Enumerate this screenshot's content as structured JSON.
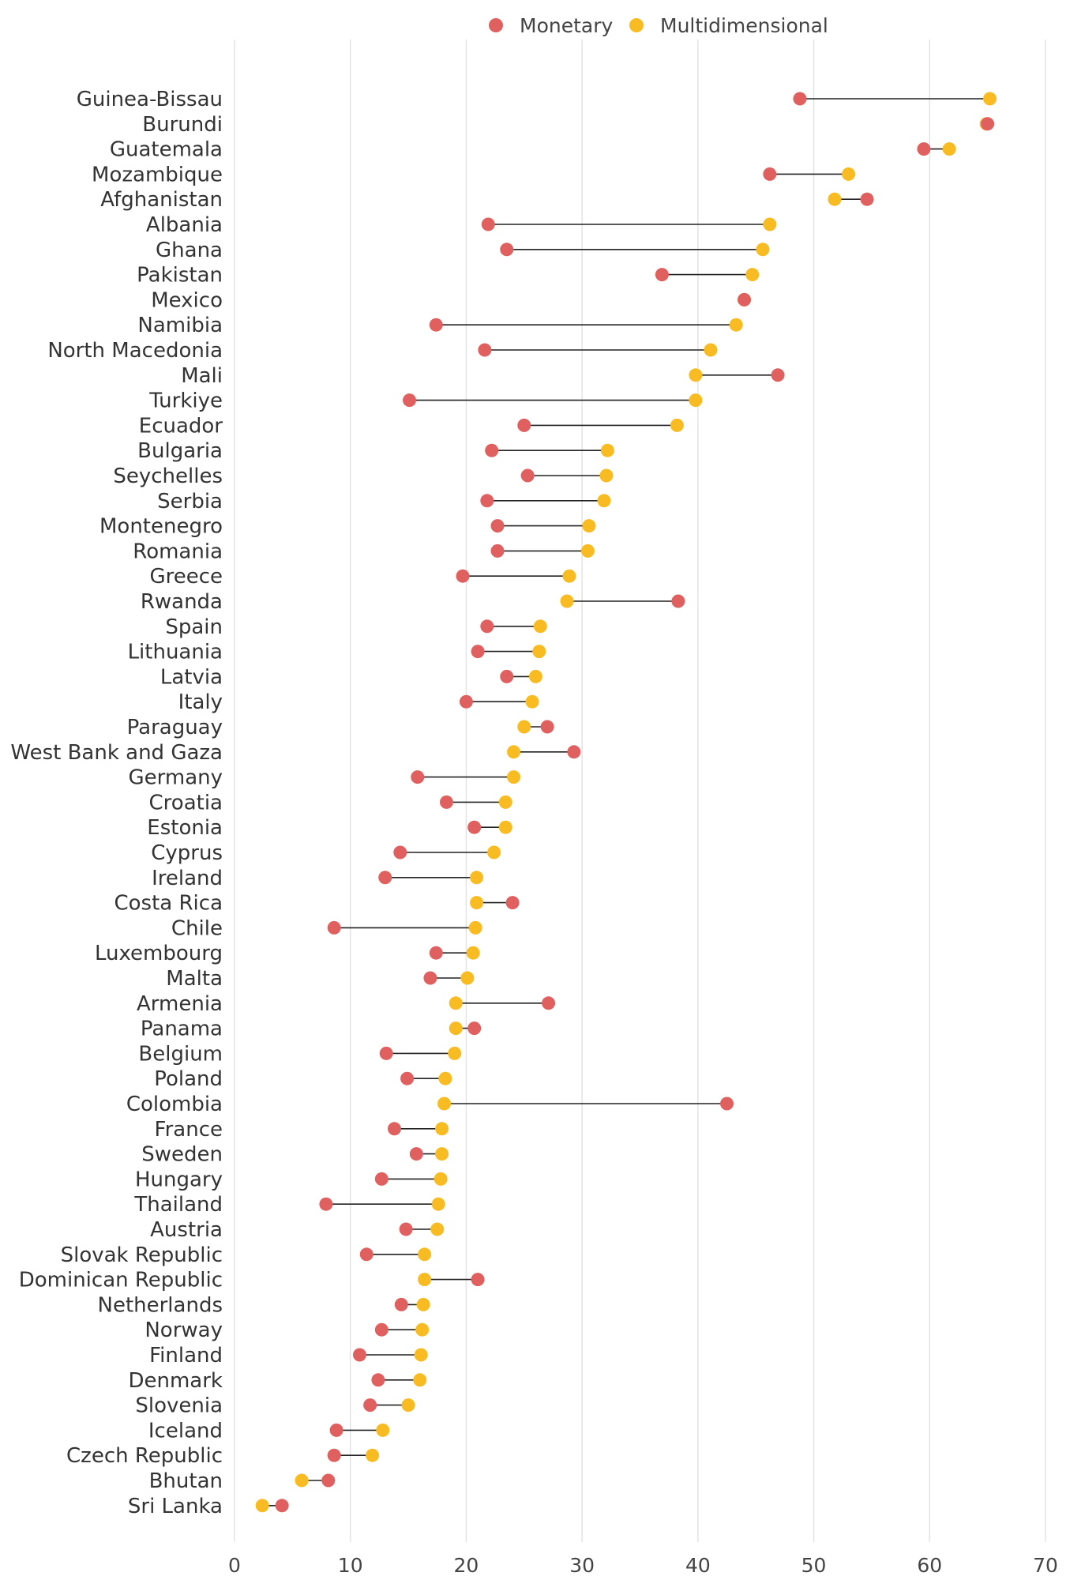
{
  "chart_data": {
    "type": "dumbbell",
    "title": "",
    "xlabel": "",
    "ylabel": "",
    "xlim": [
      0,
      70
    ],
    "xticks": [
      0,
      10,
      20,
      30,
      40,
      50,
      60,
      70
    ],
    "grid": "vertical",
    "legend_position": "top-center",
    "colors": {
      "Monetary": "#e06060",
      "Multidimensional": "#f8bc22",
      "connector": "#222222",
      "grid": "#e4e4e4"
    },
    "series": [
      {
        "name": "Monetary"
      },
      {
        "name": "Multidimensional"
      }
    ],
    "categories": [
      "Guinea-Bissau",
      "Burundi",
      "Guatemala",
      "Mozambique",
      "Afghanistan",
      "Albania",
      "Ghana",
      "Pakistan",
      "Mexico",
      "Namibia",
      "North Macedonia",
      "Mali",
      "Turkiye",
      "Ecuador",
      "Bulgaria",
      "Seychelles",
      "Serbia",
      "Montenegro",
      "Romania",
      "Greece",
      "Rwanda",
      "Spain",
      "Lithuania",
      "Latvia",
      "Italy",
      "Paraguay",
      "West Bank and Gaza",
      "Germany",
      "Croatia",
      "Estonia",
      "Cyprus",
      "Ireland",
      "Costa Rica",
      "Chile",
      "Luxembourg",
      "Malta",
      "Armenia",
      "Panama",
      "Belgium",
      "Poland",
      "Colombia",
      "France",
      "Sweden",
      "Hungary",
      "Thailand",
      "Austria",
      "Slovak Republic",
      "Dominican Republic",
      "Netherlands",
      "Norway",
      "Finland",
      "Denmark",
      "Slovenia",
      "Iceland",
      "Czech Republic",
      "Bhutan",
      "Sri Lanka"
    ],
    "monetary": [
      48.8,
      65.0,
      59.5,
      46.2,
      54.6,
      21.9,
      23.5,
      36.9,
      44.0,
      17.4,
      21.6,
      46.9,
      15.1,
      25.0,
      22.2,
      25.3,
      21.8,
      22.7,
      22.7,
      19.7,
      38.3,
      21.8,
      21.0,
      23.5,
      20.0,
      27.0,
      29.3,
      15.8,
      18.3,
      20.7,
      14.3,
      13.0,
      24.0,
      8.6,
      17.4,
      16.9,
      27.1,
      20.7,
      13.1,
      14.9,
      42.5,
      13.8,
      15.7,
      12.7,
      7.9,
      14.8,
      11.4,
      21.0,
      14.4,
      12.7,
      10.8,
      12.4,
      11.7,
      8.8,
      8.6,
      8.1,
      4.1
    ],
    "multidimensional": [
      65.2,
      64.9,
      61.7,
      53.0,
      51.8,
      46.2,
      45.6,
      44.7,
      44.0,
      43.3,
      41.1,
      39.8,
      39.8,
      38.2,
      32.2,
      32.1,
      31.9,
      30.6,
      30.5,
      28.9,
      28.7,
      26.4,
      26.3,
      26.0,
      25.7,
      25.0,
      24.1,
      24.1,
      23.4,
      23.4,
      22.4,
      20.9,
      20.9,
      20.8,
      20.6,
      20.1,
      19.1,
      19.1,
      19.0,
      18.2,
      18.1,
      17.9,
      17.9,
      17.8,
      17.6,
      17.5,
      16.4,
      16.4,
      16.3,
      16.2,
      16.1,
      16.0,
      15.0,
      12.8,
      11.9,
      5.8,
      2.4
    ]
  }
}
